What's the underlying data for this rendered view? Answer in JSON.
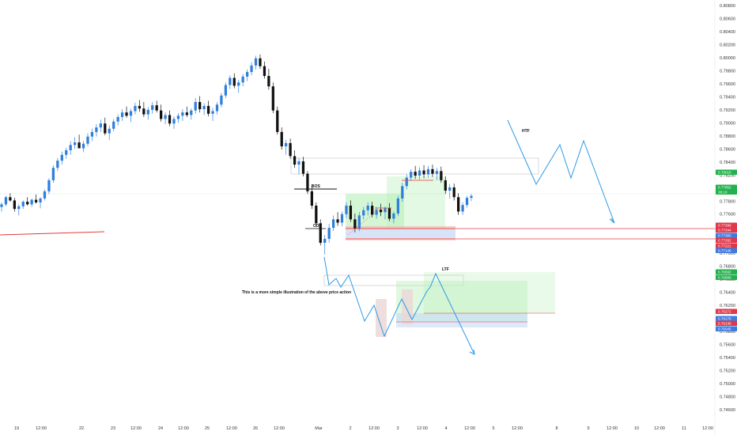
{
  "chart_data": {
    "type": "candlestick",
    "title": "",
    "colors": {
      "up": "#2f7fdc",
      "down": "#111111",
      "annotation_line": "#2f9be6",
      "zone_green": "#b9f0b9",
      "zone_blue": "#c6d8f5",
      "zone_red": "#f3b6b6",
      "hline_red": "#e23b3b"
    },
    "price_axis": {
      "ticks": [
        "0.80800",
        "0.80600",
        "0.80400",
        "0.80200",
        "0.80000",
        "0.79800",
        "0.79600",
        "0.79400",
        "0.79200",
        "0.79000",
        "0.78800",
        "0.78600",
        "0.78400",
        "0.78200",
        "0.78000",
        "0.77800",
        "0.77600",
        "0.77400",
        "0.77200",
        "0.77000",
        "0.76800",
        "0.76600",
        "0.76400",
        "0.76200",
        "0.76000",
        "0.75800",
        "0.75600",
        "0.75400",
        "0.75200",
        "0.75000",
        "0.74800",
        "0.74600"
      ],
      "range": [
        0.7455,
        0.8085
      ]
    },
    "time_axis": {
      "labels": [
        "19",
        "12:00",
        "22",
        "23",
        "12:00",
        "24",
        "12:00",
        "25",
        "12:00",
        "26",
        "12:00",
        "Mar",
        "2",
        "12:00",
        "3",
        "12:00",
        "4",
        "12:00",
        "5",
        "12:00",
        "8",
        "9",
        "12:00",
        "10",
        "12:00",
        "11",
        "12:00"
      ]
    },
    "price_badges": [
      {
        "value": "0.78016",
        "color": "#22b14c"
      },
      {
        "value": "0.77852",
        "color": "#22b14c"
      },
      {
        "value": "38:10",
        "color": "#22b14c"
      },
      {
        "value": "0.77396",
        "color": "#e0374a"
      },
      {
        "value": "0.77344",
        "color": "#e0374a"
      },
      {
        "value": "0.77300",
        "color": "#3d7be0"
      },
      {
        "value": "0.77262",
        "color": "#e0374a"
      },
      {
        "value": "0.77221",
        "color": "#e0374a"
      },
      {
        "value": "0.77146",
        "color": "#3d7be0"
      },
      {
        "value": "0.76692",
        "color": "#22b14c"
      },
      {
        "value": "0.76666",
        "color": "#22b14c"
      },
      {
        "value": "0.76272",
        "color": "#e0374a"
      },
      {
        "value": "0.76176",
        "color": "#3d7be0"
      },
      {
        "value": "0.76136",
        "color": "#e0374a"
      },
      {
        "value": "0.76045",
        "color": "#3d7be0"
      }
    ],
    "annotations": {
      "bos": "BOS",
      "cot": "COT",
      "htf": "HTF",
      "ltf": "LTF",
      "note": "This is a more simple illustration of the above price action"
    },
    "candles": [
      [
        0.7771,
        0.7778,
        0.7764,
        0.7775
      ],
      [
        0.7775,
        0.7788,
        0.7772,
        0.7786
      ],
      [
        0.7786,
        0.7792,
        0.7779,
        0.7781
      ],
      [
        0.7781,
        0.7785,
        0.7764,
        0.7768
      ],
      [
        0.7768,
        0.7775,
        0.7758,
        0.7772
      ],
      [
        0.7772,
        0.7781,
        0.7768,
        0.7779
      ],
      [
        0.7779,
        0.7786,
        0.7773,
        0.7775
      ],
      [
        0.7775,
        0.7784,
        0.7771,
        0.7782
      ],
      [
        0.7782,
        0.779,
        0.7776,
        0.7778
      ],
      [
        0.7778,
        0.7786,
        0.7769,
        0.7784
      ],
      [
        0.7784,
        0.7798,
        0.7781,
        0.7795
      ],
      [
        0.7795,
        0.7815,
        0.7791,
        0.7812
      ],
      [
        0.7812,
        0.7835,
        0.7808,
        0.7831
      ],
      [
        0.7831,
        0.7846,
        0.7826,
        0.7842
      ],
      [
        0.7842,
        0.7856,
        0.7836,
        0.7851
      ],
      [
        0.7851,
        0.7862,
        0.7845,
        0.7858
      ],
      [
        0.7858,
        0.7872,
        0.7851,
        0.7866
      ],
      [
        0.7866,
        0.7878,
        0.786,
        0.787
      ],
      [
        0.787,
        0.7882,
        0.7863,
        0.7861
      ],
      [
        0.7861,
        0.7872,
        0.7855,
        0.7868
      ],
      [
        0.7868,
        0.7884,
        0.7864,
        0.7879
      ],
      [
        0.7879,
        0.7891,
        0.7872,
        0.7886
      ],
      [
        0.7886,
        0.7898,
        0.7879,
        0.7893
      ],
      [
        0.7893,
        0.7905,
        0.7886,
        0.7899
      ],
      [
        0.7899,
        0.7908,
        0.7881,
        0.7884
      ],
      [
        0.7884,
        0.7896,
        0.7874,
        0.7891
      ],
      [
        0.7891,
        0.7906,
        0.7887,
        0.7902
      ],
      [
        0.7902,
        0.7913,
        0.7896,
        0.7909
      ],
      [
        0.7909,
        0.7921,
        0.7903,
        0.7916
      ],
      [
        0.7916,
        0.7925,
        0.7908,
        0.7911
      ],
      [
        0.7911,
        0.7922,
        0.7901,
        0.7918
      ],
      [
        0.7918,
        0.7931,
        0.7913,
        0.7926
      ],
      [
        0.7926,
        0.7935,
        0.7917,
        0.7922
      ],
      [
        0.7922,
        0.7932,
        0.7909,
        0.7913
      ],
      [
        0.7913,
        0.7924,
        0.7905,
        0.792
      ],
      [
        0.792,
        0.7932,
        0.7914,
        0.7927
      ],
      [
        0.7927,
        0.7934,
        0.7916,
        0.7919
      ],
      [
        0.7919,
        0.7928,
        0.7902,
        0.7906
      ],
      [
        0.7906,
        0.7916,
        0.7898,
        0.7912
      ],
      [
        0.7912,
        0.7919,
        0.7895,
        0.7899
      ],
      [
        0.7899,
        0.791,
        0.7891,
        0.7906
      ],
      [
        0.7906,
        0.7915,
        0.79,
        0.7911
      ],
      [
        0.7911,
        0.7921,
        0.7903,
        0.7916
      ],
      [
        0.7916,
        0.7925,
        0.7909,
        0.7912
      ],
      [
        0.7912,
        0.7922,
        0.7905,
        0.7919
      ],
      [
        0.7919,
        0.7938,
        0.7914,
        0.7932
      ],
      [
        0.7932,
        0.7941,
        0.7916,
        0.7921
      ],
      [
        0.7921,
        0.793,
        0.7912,
        0.7926
      ],
      [
        0.7926,
        0.7934,
        0.791,
        0.7914
      ],
      [
        0.7914,
        0.7923,
        0.7903,
        0.7918
      ],
      [
        0.7918,
        0.7932,
        0.7913,
        0.7928
      ],
      [
        0.7928,
        0.7946,
        0.7924,
        0.7942
      ],
      [
        0.7942,
        0.7962,
        0.7938,
        0.7958
      ],
      [
        0.7958,
        0.7973,
        0.7952,
        0.7969
      ],
      [
        0.7969,
        0.7976,
        0.7953,
        0.7957
      ],
      [
        0.7957,
        0.7966,
        0.7946,
        0.7962
      ],
      [
        0.7962,
        0.7975,
        0.7956,
        0.7971
      ],
      [
        0.7971,
        0.7982,
        0.7964,
        0.7978
      ],
      [
        0.7978,
        0.7993,
        0.7973,
        0.7988
      ],
      [
        0.7988,
        0.8003,
        0.7982,
        0.7999
      ],
      [
        0.7999,
        0.8005,
        0.7983,
        0.7987
      ],
      [
        0.7987,
        0.7994,
        0.7968,
        0.7972
      ],
      [
        0.7972,
        0.7983,
        0.7951,
        0.7956
      ],
      [
        0.7956,
        0.7962,
        0.7915,
        0.7919
      ],
      [
        0.7919,
        0.7925,
        0.7882,
        0.7886
      ],
      [
        0.7886,
        0.7893,
        0.7859,
        0.7864
      ],
      [
        0.7864,
        0.7874,
        0.7851,
        0.7869
      ],
      [
        0.7869,
        0.7876,
        0.7845,
        0.7849
      ],
      [
        0.7849,
        0.7858,
        0.7831,
        0.7836
      ],
      [
        0.7836,
        0.7846,
        0.7821,
        0.7841
      ],
      [
        0.7841,
        0.7848,
        0.7818,
        0.7822
      ],
      [
        0.7822,
        0.7826,
        0.7791,
        0.7795
      ],
      [
        0.7795,
        0.7805,
        0.7768,
        0.7773
      ],
      [
        0.7773,
        0.7778,
        0.7741,
        0.7746
      ],
      [
        0.7746,
        0.7752,
        0.7712,
        0.7716
      ],
      [
        0.7716,
        0.7728,
        0.7698,
        0.7722
      ],
      [
        0.7722,
        0.7745,
        0.7716,
        0.7739
      ],
      [
        0.7739,
        0.7758,
        0.7734,
        0.7752
      ],
      [
        0.7752,
        0.7763,
        0.7742,
        0.7747
      ],
      [
        0.7747,
        0.7764,
        0.7741,
        0.776
      ],
      [
        0.776,
        0.7778,
        0.7754,
        0.7773
      ],
      [
        0.7773,
        0.7781,
        0.7748,
        0.7752
      ],
      [
        0.7752,
        0.7761,
        0.7732,
        0.7738
      ],
      [
        0.7738,
        0.7763,
        0.7734,
        0.7758
      ],
      [
        0.7758,
        0.7771,
        0.7752,
        0.7766
      ],
      [
        0.7766,
        0.7778,
        0.7758,
        0.7773
      ],
      [
        0.7773,
        0.7779,
        0.7755,
        0.7759
      ],
      [
        0.7759,
        0.7771,
        0.7753,
        0.7767
      ],
      [
        0.7767,
        0.7776,
        0.7757,
        0.7763
      ],
      [
        0.7763,
        0.7772,
        0.7752,
        0.7769
      ],
      [
        0.7769,
        0.7777,
        0.7749,
        0.7753
      ],
      [
        0.7753,
        0.7764,
        0.7746,
        0.7761
      ],
      [
        0.7761,
        0.7788,
        0.7757,
        0.7784
      ],
      [
        0.7784,
        0.7808,
        0.7779,
        0.7803
      ],
      [
        0.7803,
        0.7821,
        0.7798,
        0.7816
      ],
      [
        0.7816,
        0.7829,
        0.7811,
        0.7825
      ],
      [
        0.7825,
        0.7834,
        0.7814,
        0.7819
      ],
      [
        0.7819,
        0.7832,
        0.7813,
        0.7827
      ],
      [
        0.7827,
        0.7835,
        0.7815,
        0.7821
      ],
      [
        0.7821,
        0.7834,
        0.7816,
        0.7829
      ],
      [
        0.7829,
        0.7836,
        0.7817,
        0.7822
      ],
      [
        0.7822,
        0.7831,
        0.7812,
        0.7826
      ],
      [
        0.7826,
        0.7833,
        0.7808,
        0.7812
      ],
      [
        0.7812,
        0.7818,
        0.7791,
        0.7796
      ],
      [
        0.7796,
        0.7806,
        0.7784,
        0.7801
      ],
      [
        0.7801,
        0.7807,
        0.7781,
        0.7786
      ],
      [
        0.7786,
        0.7792,
        0.7759,
        0.7764
      ],
      [
        0.7764,
        0.7778,
        0.7759,
        0.7774
      ],
      [
        0.7774,
        0.7788,
        0.777,
        0.7785
      ],
      [
        0.7785,
        0.7791,
        0.778,
        0.7788
      ]
    ]
  }
}
